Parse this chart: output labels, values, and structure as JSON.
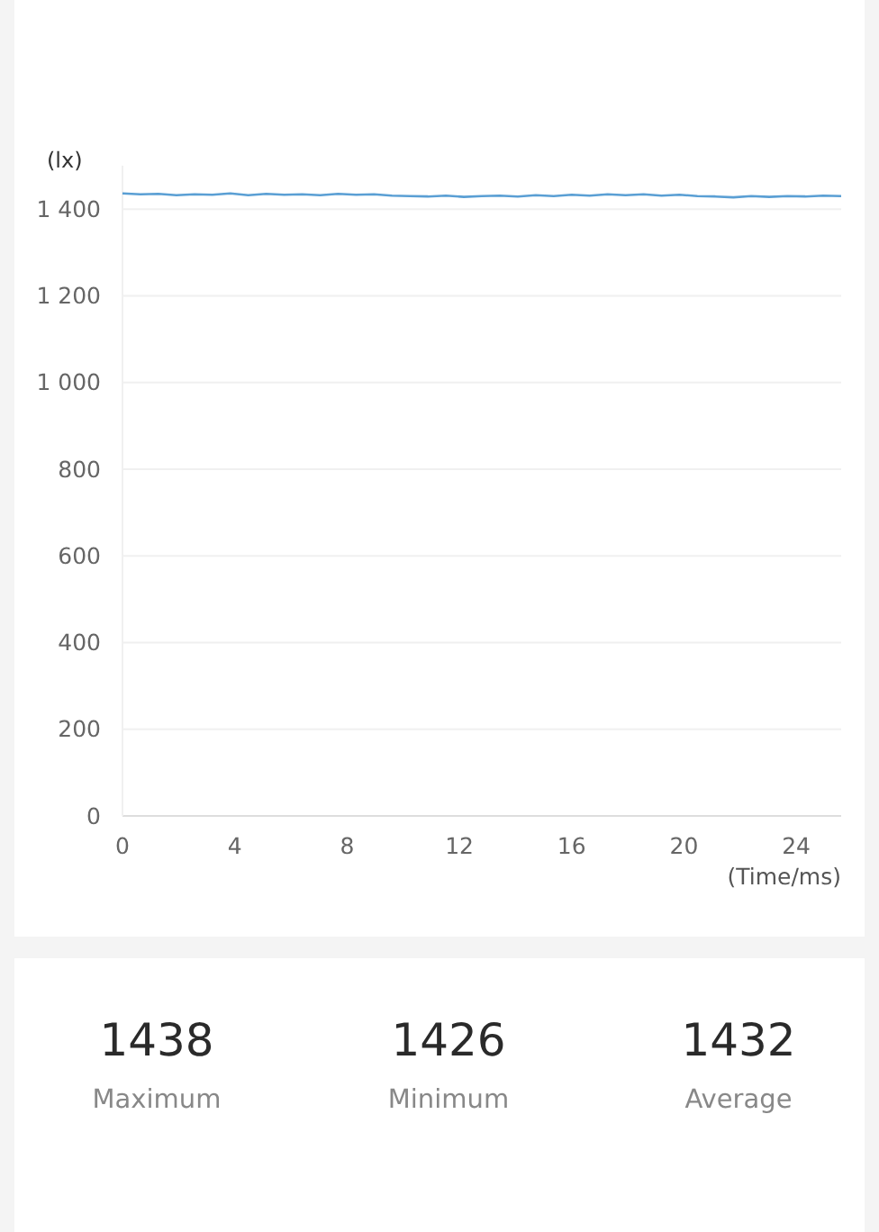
{
  "chart_data": {
    "type": "line",
    "ylabel": "(lx)",
    "xlabel": "(Time/ms)",
    "x": [
      0,
      0.64,
      1.28,
      1.92,
      2.56,
      3.2,
      3.84,
      4.48,
      5.12,
      5.76,
      6.4,
      7.04,
      7.68,
      8.32,
      8.96,
      9.6,
      10.24,
      10.88,
      11.52,
      12.16,
      12.8,
      13.44,
      14.08,
      14.72,
      15.36,
      16,
      16.64,
      17.28,
      17.92,
      18.56,
      19.2,
      19.84,
      20.48,
      21.12,
      21.76,
      22.4,
      23.04,
      23.68,
      24.32,
      24.96,
      25.6
    ],
    "series": [
      {
        "color": "#5a9fd4",
        "values": [
          1436,
          1434,
          1435,
          1432,
          1434,
          1433,
          1436,
          1432,
          1435,
          1433,
          1434,
          1432,
          1435,
          1433,
          1434,
          1431,
          1430,
          1429,
          1431,
          1428,
          1430,
          1431,
          1429,
          1432,
          1430,
          1433,
          1431,
          1434,
          1432,
          1434,
          1431,
          1433,
          1430,
          1429,
          1427,
          1430,
          1428,
          1430,
          1429,
          1431,
          1430
        ]
      }
    ],
    "xlim": [
      0,
      25.6
    ],
    "ylim": [
      0,
      1500
    ],
    "xticks": [
      0,
      4,
      8,
      12,
      16,
      20,
      24
    ],
    "yticks": [
      0,
      200,
      400,
      600,
      800,
      {
        "value": 1000,
        "label": "1 000"
      },
      {
        "value": 1200,
        "label": "1 200"
      },
      {
        "value": 1400,
        "label": "1 400"
      }
    ],
    "grid": "y",
    "annotations": [
      "1438",
      "Maximum",
      "1426",
      "Minimum",
      "1432",
      "Average"
    ]
  }
}
